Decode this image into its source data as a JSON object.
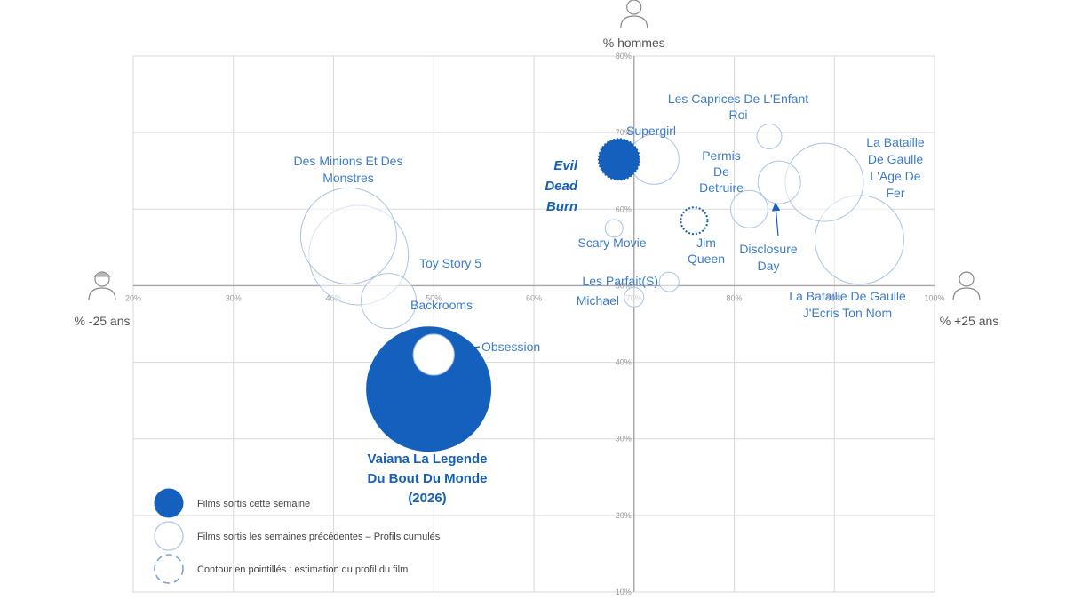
{
  "chart_data": {
    "type": "scatter",
    "variant": "bubble",
    "x_axis": {
      "left_label": "% -25 ans",
      "right_label": "% +25 ans",
      "range": [
        20,
        100
      ],
      "ticks": [
        "20%",
        "30%",
        "40%",
        "50%",
        "60%",
        "70%",
        "80%",
        "90%",
        "100%"
      ],
      "tick_values": [
        20,
        30,
        40,
        50,
        60,
        70,
        80,
        90,
        100
      ],
      "crosses_y_at": 50
    },
    "y_axis": {
      "top_label": "% hommes",
      "range": [
        10,
        80
      ],
      "ticks": [
        "80%",
        "70%",
        "60%",
        "50%",
        "40%",
        "30%",
        "20%",
        "10%"
      ],
      "tick_values": [
        80,
        70,
        60,
        50,
        40,
        30,
        20,
        10
      ],
      "crosses_x_at": 70
    },
    "grid": true,
    "legend": {
      "placement": "bottom-left",
      "items": [
        {
          "style": "filled",
          "label": "Films sortis cette semaine"
        },
        {
          "style": "outline",
          "label": "Films sortis les semaines précédentes – Profils cumulés"
        },
        {
          "style": "dashed",
          "label": "Contour en pointillés : estimation du profil du film"
        }
      ]
    },
    "colors": {
      "primary": "#1560bd",
      "outline": "#a9c4e6",
      "grid": "#d9d9d9",
      "axis": "#a6a6a6"
    },
    "points": [
      {
        "name": "Vaiana La Legende Du Bout Du Monde (2026)",
        "label_lines": [
          "Vaiana La Legende",
          "Du Bout Du Monde",
          "(2026)"
        ],
        "x": 49.5,
        "y": 36.5,
        "size": 70,
        "filled": true,
        "dashed": false
      },
      {
        "name": "Obsession",
        "label_lines": [
          "Obsession"
        ],
        "x": 50,
        "y": 41,
        "size": 23,
        "filled": false,
        "dashed": false
      },
      {
        "name": "Evil Dead Burn",
        "label_lines": [
          "Evil",
          "Dead",
          "Burn"
        ],
        "x": 68.5,
        "y": 66.5,
        "size": 24,
        "filled": true,
        "dashed": true
      },
      {
        "name": "Supergirl",
        "label_lines": [
          "Supergirl"
        ],
        "x": 72,
        "y": 66.5,
        "size": 28,
        "filled": false,
        "dashed": false
      },
      {
        "name": "Des Minions Et Des Monstres",
        "label_lines": [
          "Des Minions Et Des",
          "Monstres"
        ],
        "x": 41.5,
        "y": 56.5,
        "size": 54,
        "filled": false,
        "dashed": false
      },
      {
        "name": "Toy Story 5",
        "label_lines": [
          "Toy Story 5"
        ],
        "x": 42.5,
        "y": 54,
        "size": 56,
        "filled": false,
        "dashed": false
      },
      {
        "name": "Backrooms",
        "label_lines": [
          "Backrooms"
        ],
        "x": 45.5,
        "y": 48,
        "size": 31,
        "filled": false,
        "dashed": false
      },
      {
        "name": "Scary Movie",
        "label_lines": [
          "Scary Movie"
        ],
        "x": 68,
        "y": 57.5,
        "size": 10,
        "filled": false,
        "dashed": false
      },
      {
        "name": "Jim Queen",
        "label_lines": [
          "Jim",
          "Queen"
        ],
        "x": 76,
        "y": 58.5,
        "size": 15,
        "filled": false,
        "dashed": true
      },
      {
        "name": "Les Parfait(S)",
        "label_lines": [
          "Les Parfait(S)"
        ],
        "x": 73.5,
        "y": 50.5,
        "size": 11,
        "filled": false,
        "dashed": false
      },
      {
        "name": "Michael",
        "label_lines": [
          "Michael"
        ],
        "x": 70,
        "y": 48.5,
        "size": 11,
        "filled": false,
        "dashed": false
      },
      {
        "name": "Les Caprices De L'Enfant Roi",
        "label_lines": [
          "Les Caprices De L'Enfant",
          "Roi"
        ],
        "x": 83.5,
        "y": 69.5,
        "size": 14,
        "filled": false,
        "dashed": false
      },
      {
        "name": "Permis De Detruire",
        "label_lines": [
          "Permis",
          "De",
          "Detruire"
        ],
        "x": 81.5,
        "y": 60,
        "size": 21,
        "filled": false,
        "dashed": false
      },
      {
        "name": "Disclosure Day",
        "label_lines": [
          "Disclosure",
          "Day"
        ],
        "x": 84.5,
        "y": 63.5,
        "size": 24,
        "filled": false,
        "dashed": false
      },
      {
        "name": "La Bataille De Gaulle L'Age De Fer",
        "label_lines": [
          "La Bataille",
          "De Gaulle",
          "L'Age De",
          "Fer"
        ],
        "x": 89,
        "y": 63.5,
        "size": 44,
        "filled": false,
        "dashed": false
      },
      {
        "name": "La Bataille De Gaulle J'Ecris Ton Nom",
        "label_lines": [
          "La Bataille De Gaulle",
          "J'Ecris Ton Nom"
        ],
        "x": 92.5,
        "y": 56,
        "size": 50,
        "filled": false,
        "dashed": false
      }
    ]
  }
}
